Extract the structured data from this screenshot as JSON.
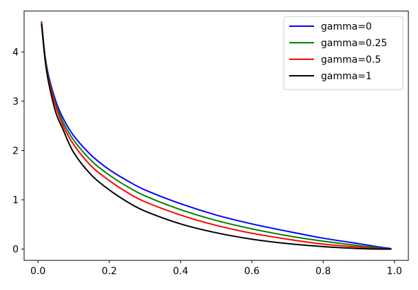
{
  "chart_data": {
    "type": "line",
    "title": "",
    "xlabel": "",
    "ylabel": "",
    "xlim": [
      -0.039,
      1.039
    ],
    "ylim": [
      -0.23,
      4.83
    ],
    "grid": false,
    "legend_position": "upper right",
    "x_ticks": [
      {
        "value": 0.0,
        "label": "0.0"
      },
      {
        "value": 0.2,
        "label": "0.2"
      },
      {
        "value": 0.4,
        "label": "0.4"
      },
      {
        "value": 0.6,
        "label": "0.6"
      },
      {
        "value": 0.8,
        "label": "0.8"
      },
      {
        "value": 1.0,
        "label": "1.0"
      }
    ],
    "y_ticks": [
      {
        "value": 0,
        "label": "0"
      },
      {
        "value": 1,
        "label": "1"
      },
      {
        "value": 2,
        "label": "2"
      },
      {
        "value": 3,
        "label": "3"
      },
      {
        "value": 4,
        "label": "4"
      }
    ],
    "x": [
      0.01,
      0.02,
      0.03,
      0.05,
      0.07,
      0.1,
      0.15,
      0.2,
      0.25,
      0.3,
      0.4,
      0.5,
      0.6,
      0.7,
      0.8,
      0.9,
      0.95,
      0.99
    ],
    "series": [
      {
        "name": "gamma=0",
        "color": "#0000ff",
        "values": [
          4.61,
          3.91,
          3.51,
          3.0,
          2.66,
          2.3,
          1.9,
          1.61,
          1.39,
          1.2,
          0.92,
          0.69,
          0.51,
          0.36,
          0.22,
          0.11,
          0.05,
          0.01
        ]
      },
      {
        "name": "gamma=0.25",
        "color": "#008000",
        "values": [
          4.6,
          3.88,
          3.46,
          2.94,
          2.58,
          2.21,
          1.79,
          1.5,
          1.27,
          1.08,
          0.8,
          0.58,
          0.41,
          0.27,
          0.16,
          0.07,
          0.03,
          0.0
        ]
      },
      {
        "name": "gamma=0.5",
        "color": "#ff0000",
        "values": [
          4.59,
          3.86,
          3.42,
          2.89,
          2.51,
          2.12,
          1.68,
          1.39,
          1.15,
          0.96,
          0.69,
          0.48,
          0.32,
          0.2,
          0.1,
          0.04,
          0.01,
          0.0
        ]
      },
      {
        "name": "gamma=1",
        "color": "#000000",
        "values": [
          4.56,
          3.83,
          3.37,
          2.77,
          2.43,
          1.96,
          1.5,
          1.2,
          0.96,
          0.77,
          0.51,
          0.33,
          0.2,
          0.11,
          0.05,
          0.01,
          0.0,
          0.0
        ]
      }
    ]
  }
}
